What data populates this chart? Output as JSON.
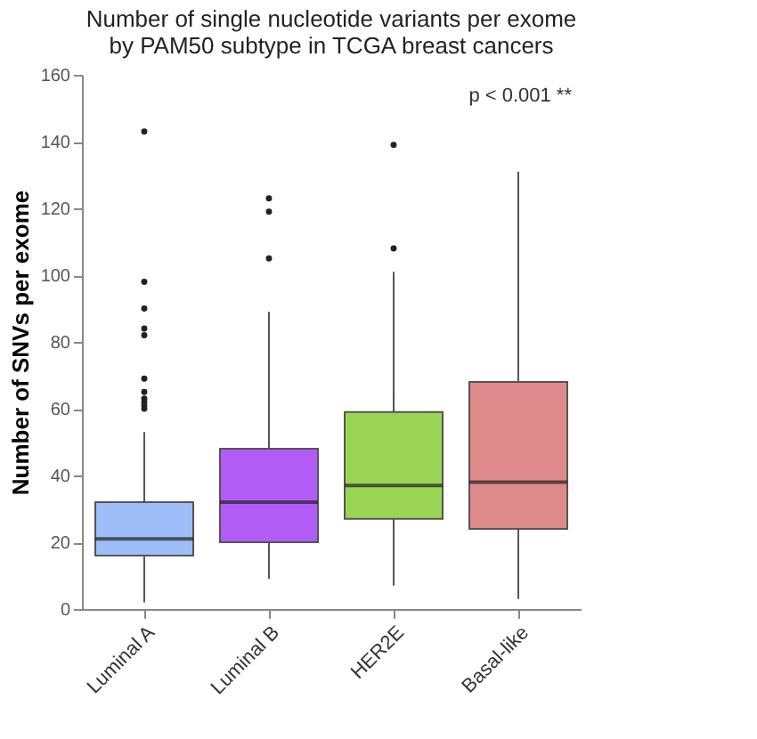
{
  "chart_data": {
    "type": "box",
    "title": [
      "Number of single nucleotide variants per exome",
      "by PAM50 subtype in TCGA breast cancers"
    ],
    "ylabel": "Number of SNVs per exome",
    "categories": [
      "Luminal A",
      "Luminal B",
      "HER2E",
      "Basal-like"
    ],
    "colors": [
      "#9dbef8",
      "#b05cf5",
      "#9bd454",
      "#de8a8a"
    ],
    "boxes": [
      {
        "low": 2,
        "q1": 16,
        "median": 21,
        "q3": 32,
        "high": 53,
        "outliers": [
          60,
          61,
          62,
          63,
          65,
          69,
          82,
          84,
          90,
          98,
          143
        ]
      },
      {
        "low": 9,
        "q1": 20,
        "median": 32,
        "q3": 48,
        "high": 89,
        "outliers": [
          105,
          119,
          123
        ]
      },
      {
        "low": 7,
        "q1": 27,
        "median": 37,
        "q3": 59,
        "high": 101,
        "outliers": [
          108,
          139
        ]
      },
      {
        "low": 3,
        "q1": 24,
        "median": 38,
        "q3": 68,
        "high": 131
      }
    ],
    "ylim": [
      0,
      160
    ],
    "yticks": [
      0,
      20,
      40,
      60,
      80,
      100,
      120,
      140,
      160
    ],
    "annotations": [
      "p < 0.001 **"
    ],
    "grid": false
  }
}
